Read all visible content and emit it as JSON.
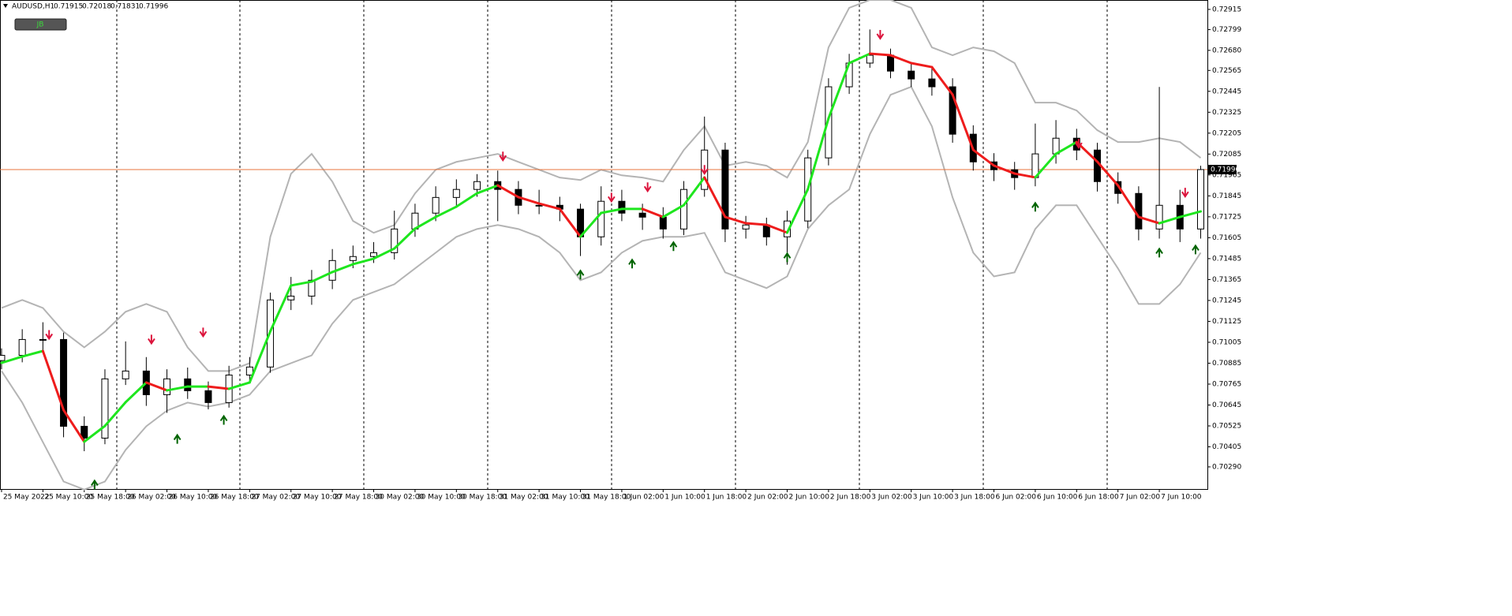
{
  "chart_data": {
    "type": "candlestick",
    "symbol": "AUDUSD,H1",
    "ohlc": [
      0.71915,
      0.72018,
      0.71831,
      0.71996
    ],
    "button": "JB",
    "xlim": [
      -0.3,
      233.3
    ],
    "ylim": [
      0.70163,
      0.72969
    ],
    "xticks": [
      {
        "value": 0,
        "label": "25 May 2022"
      },
      {
        "value": 8,
        "label": "25 May 10:00"
      },
      {
        "value": 16,
        "label": "25 May 18:00"
      },
      {
        "value": 24,
        "label": "26 May 02:00"
      },
      {
        "value": 32,
        "label": "26 May 10:00"
      },
      {
        "value": 40,
        "label": "26 May 18:00"
      },
      {
        "value": 48,
        "label": "27 May 02:00"
      },
      {
        "value": 56,
        "label": "27 May 10:00"
      },
      {
        "value": 64,
        "label": "27 May 18:00"
      },
      {
        "value": 72,
        "label": "30 May 02:00"
      },
      {
        "value": 80,
        "label": "30 May 10:00"
      },
      {
        "value": 88,
        "label": "30 May 18:00"
      },
      {
        "value": 96,
        "label": "31 May 02:00"
      },
      {
        "value": 104,
        "label": "31 May 10:00"
      },
      {
        "value": 112,
        "label": "31 May 18:00"
      },
      {
        "value": 120,
        "label": "1 Jun 02:00"
      },
      {
        "value": 128,
        "label": "1 Jun 10:00"
      },
      {
        "value": 136,
        "label": "1 Jun 18:00"
      },
      {
        "value": 144,
        "label": "2 Jun 02:00"
      },
      {
        "value": 152,
        "label": "2 Jun 10:00"
      },
      {
        "value": 160,
        "label": "2 Jun 18:00"
      },
      {
        "value": 168,
        "label": "3 Jun 02:00"
      },
      {
        "value": 176,
        "label": "3 Jun 10:00"
      },
      {
        "value": 184,
        "label": "3 Jun 18:00"
      },
      {
        "value": 192,
        "label": "6 Jun 02:00"
      },
      {
        "value": 200,
        "label": "6 Jun 10:00"
      },
      {
        "value": 208,
        "label": "6 Jun 18:00"
      },
      {
        "value": 216,
        "label": "7 Jun 02:00"
      },
      {
        "value": 224,
        "label": "7 Jun 10:00"
      }
    ],
    "yticks": [
      0.72915,
      0.72799,
      {
        "value": 0.7268,
        "label": "0.72680"
      },
      0.72565,
      0.72445,
      0.72325,
      0.72205,
      0.72085,
      0.71965,
      0.71845,
      0.71725,
      0.71605,
      0.71485,
      0.71365,
      0.71245,
      0.71125,
      0.71005,
      0.70885,
      0.70765,
      0.70645,
      0.70525,
      0.70405,
      {
        "value": 0.7029,
        "label": "0.70290"
      }
    ],
    "x": [
      0,
      4,
      8,
      12,
      16,
      20,
      24,
      28,
      32,
      36,
      40,
      44,
      48,
      52,
      56,
      60,
      64,
      68,
      72,
      76,
      80,
      84,
      88,
      92,
      96,
      100,
      104,
      108,
      112,
      116,
      120,
      124,
      128,
      132,
      136,
      140,
      144,
      148,
      152,
      156,
      160,
      164,
      168,
      172,
      176,
      180,
      184,
      188,
      192,
      196,
      200,
      204,
      208,
      212,
      216,
      220,
      224,
      228,
      232
    ],
    "open": [
      0.709,
      0.7093,
      0.71021,
      0.71021,
      0.70523,
      0.70455,
      0.70795,
      0.7084,
      0.70704,
      0.70795,
      0.70727,
      0.70659,
      0.70817,
      0.70863,
      0.71248,
      0.7127,
      0.71361,
      0.71474,
      0.71497,
      0.71519,
      0.71655,
      0.71746,
      0.71836,
      0.71882,
      0.71927,
      0.71882,
      0.71791,
      0.71791,
      0.71769,
      0.7161,
      0.71814,
      0.71746,
      0.71723,
      0.71655,
      0.71882,
      0.72108,
      0.71655,
      0.71678,
      0.7161,
      0.71701,
      0.72063,
      0.72471,
      0.72607,
      0.72652,
      0.72561,
      0.72516,
      0.72471,
      0.72199,
      0.7204,
      0.71995,
      0.7195,
      0.72086,
      0.72176,
      0.72108,
      0.71927,
      0.71859,
      0.71655,
      0.71791,
      0.71655
    ],
    "high": [
      0.7097,
      0.7108,
      0.7112,
      0.7106,
      0.7058,
      0.7085,
      0.7101,
      0.7092,
      0.7085,
      0.7086,
      0.7078,
      0.7087,
      0.7092,
      0.7129,
      0.7138,
      0.7142,
      0.7154,
      0.7156,
      0.7158,
      0.7176,
      0.718,
      0.719,
      0.7194,
      0.7197,
      0.7199,
      0.7193,
      0.7188,
      0.7184,
      0.718,
      0.719,
      0.7188,
      0.718,
      0.7178,
      0.7193,
      0.723,
      0.7215,
      0.7173,
      0.7172,
      0.7176,
      0.7211,
      0.7252,
      0.7266,
      0.728,
      0.7269,
      0.7261,
      0.7258,
      0.7252,
      0.7225,
      0.7209,
      0.7204,
      0.7226,
      0.7228,
      0.7223,
      0.7215,
      0.7198,
      0.719,
      0.7247,
      0.7188,
      0.72018
    ],
    "low": [
      0.7085,
      0.7089,
      0.7096,
      0.7046,
      0.7038,
      0.7042,
      0.7076,
      0.7064,
      0.706,
      0.7068,
      0.7062,
      0.7063,
      0.7078,
      0.7083,
      0.7119,
      0.7122,
      0.7131,
      0.7143,
      0.7146,
      0.7148,
      0.7161,
      0.717,
      0.7179,
      0.7184,
      0.717,
      0.7174,
      0.7174,
      0.717,
      0.715,
      0.7156,
      0.717,
      0.7165,
      0.716,
      0.7162,
      0.7184,
      0.7158,
      0.716,
      0.7156,
      0.7145,
      0.7166,
      0.7202,
      0.7243,
      0.7258,
      0.7252,
      0.7247,
      0.7242,
      0.7215,
      0.7199,
      0.7193,
      0.7188,
      0.719,
      0.7203,
      0.7205,
      0.7187,
      0.718,
      0.7159,
      0.716,
      0.7158,
      0.716
    ],
    "close": [
      0.7093,
      0.71021,
      0.71021,
      0.70523,
      0.70455,
      0.70795,
      0.7084,
      0.70704,
      0.70795,
      0.70727,
      0.70659,
      0.70817,
      0.70863,
      0.71248,
      0.7127,
      0.71361,
      0.71474,
      0.71497,
      0.71519,
      0.71655,
      0.71746,
      0.71836,
      0.71882,
      0.71927,
      0.71882,
      0.71791,
      0.71791,
      0.71769,
      0.7161,
      0.71814,
      0.71746,
      0.71723,
      0.71655,
      0.71882,
      0.72108,
      0.71655,
      0.71678,
      0.7161,
      0.71701,
      0.72063,
      0.72471,
      0.72607,
      0.72652,
      0.72561,
      0.72516,
      0.72471,
      0.72199,
      0.7204,
      0.71995,
      0.7195,
      0.72086,
      0.72176,
      0.72108,
      0.71927,
      0.71859,
      0.71655,
      0.71791,
      0.71655,
      0.71996
    ],
    "ma": {
      "up_color": "#1ee61e",
      "down_color": "#ee1c1c",
      "values": [
        0.70887,
        0.70923,
        0.70955,
        0.70616,
        0.70434,
        0.70525,
        0.70661,
        0.70774,
        0.70729,
        0.70751,
        0.70751,
        0.70738,
        0.70774,
        0.71068,
        0.71331,
        0.71353,
        0.71408,
        0.71453,
        0.71485,
        0.71543,
        0.71657,
        0.71724,
        0.71783,
        0.7186,
        0.71905,
        0.71838,
        0.71801,
        0.7177,
        0.71611,
        0.71747,
        0.7177,
        0.7177,
        0.71724,
        0.71792,
        0.71951,
        0.71724,
        0.71688,
        0.71679,
        0.71634,
        0.71883,
        0.7229,
        0.72607,
        0.72661,
        0.72652,
        0.72607,
        0.72584,
        0.72426,
        0.72109,
        0.72019,
        0.71973,
        0.71951,
        0.72086,
        0.72154,
        0.72041,
        0.71905,
        0.71724,
        0.71688,
        0.71724,
        0.71756
      ]
    },
    "bands": {
      "color": "#b4b4b4",
      "upper": [
        0.71202,
        0.71248,
        0.71202,
        0.71066,
        0.70976,
        0.71066,
        0.7118,
        0.71225,
        0.7118,
        0.70976,
        0.7084,
        0.7084,
        0.70885,
        0.7161,
        0.71972,
        0.72086,
        0.71927,
        0.71701,
        0.71633,
        0.71678,
        0.71859,
        0.71995,
        0.7204,
        0.72063,
        0.72086,
        0.7204,
        0.71995,
        0.7195,
        0.71936,
        0.71995,
        0.71963,
        0.7195,
        0.71927,
        0.72108,
        0.72244,
        0.72018,
        0.7204,
        0.72018,
        0.7195,
        0.72154,
        0.72697,
        0.72924,
        0.72969,
        0.72969,
        0.72924,
        0.72697,
        0.72652,
        0.72697,
        0.72675,
        0.72607,
        0.7238,
        0.7238,
        0.72335,
        0.72222,
        0.72154,
        0.72154,
        0.72176,
        0.72154,
        0.72063
      ],
      "lower": [
        0.7084,
        0.70659,
        0.70432,
        0.70206,
        0.7016,
        0.70206,
        0.70387,
        0.70523,
        0.70613,
        0.70659,
        0.70636,
        0.70659,
        0.70704,
        0.7084,
        0.70885,
        0.7093,
        0.71112,
        0.71248,
        0.71293,
        0.71338,
        0.71429,
        0.71519,
        0.7161,
        0.71655,
        0.71678,
        0.71655,
        0.7161,
        0.71519,
        0.71361,
        0.71406,
        0.71519,
        0.71587,
        0.7161,
        0.7161,
        0.71633,
        0.71406,
        0.71361,
        0.71316,
        0.71383,
        0.71655,
        0.71791,
        0.71882,
        0.72199,
        0.72425,
        0.72471,
        0.72244,
        0.71836,
        0.71519,
        0.71383,
        0.71406,
        0.71655,
        0.71791,
        0.71791,
        0.7161,
        0.71429,
        0.71225,
        0.71225,
        0.71338,
        0.71519
      ]
    },
    "signals": {
      "sell": {
        "color": "#dc143c",
        "x": [
          9.2,
          29,
          39,
          97,
          118,
          125,
          136,
          170,
          208.4,
          229
        ],
        "y": [
          0.71048,
          0.71021,
          0.71062,
          0.72072,
          0.71836,
          0.71895,
          0.71995,
          0.7277,
          0.72145,
          0.71864
        ]
      },
      "buy": {
        "color": "#006400",
        "x": [
          18,
          34,
          43,
          112,
          122,
          130,
          152,
          200,
          224,
          231
        ],
        "y": [
          0.70188,
          0.7045,
          0.70559,
          0.71393,
          0.71456,
          0.71556,
          0.71492,
          0.71782,
          0.71519,
          0.71537
        ]
      }
    },
    "current_price": {
      "value": 0.71996,
      "color": "#e8743c"
    }
  }
}
